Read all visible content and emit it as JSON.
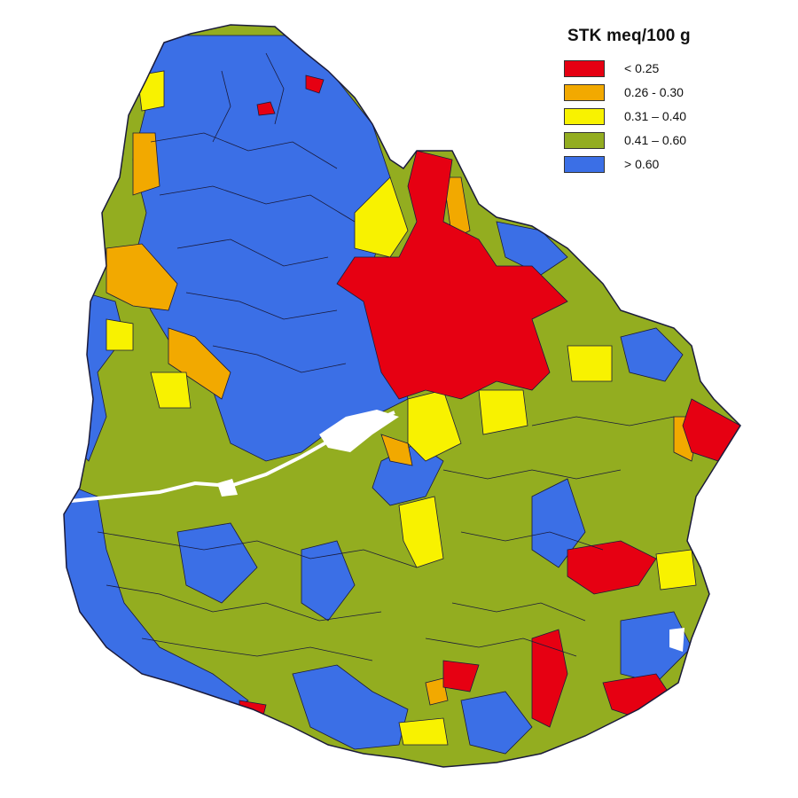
{
  "legend": {
    "title": "STK meq/100 g",
    "classes": [
      {
        "label": "< 0.25",
        "color": "#e60012"
      },
      {
        "label": "0.26 - 0.30",
        "color": "#f2a900"
      },
      {
        "label": "0.31 – 0.40",
        "color": "#f8f200"
      },
      {
        "label": "0.41 – 0.60",
        "color": "#93ad20"
      },
      {
        "label": "> 0.60",
        "color": "#3b6fe6"
      }
    ]
  },
  "colors": {
    "outline": "#1a1a3a",
    "water": "#ffffff"
  }
}
